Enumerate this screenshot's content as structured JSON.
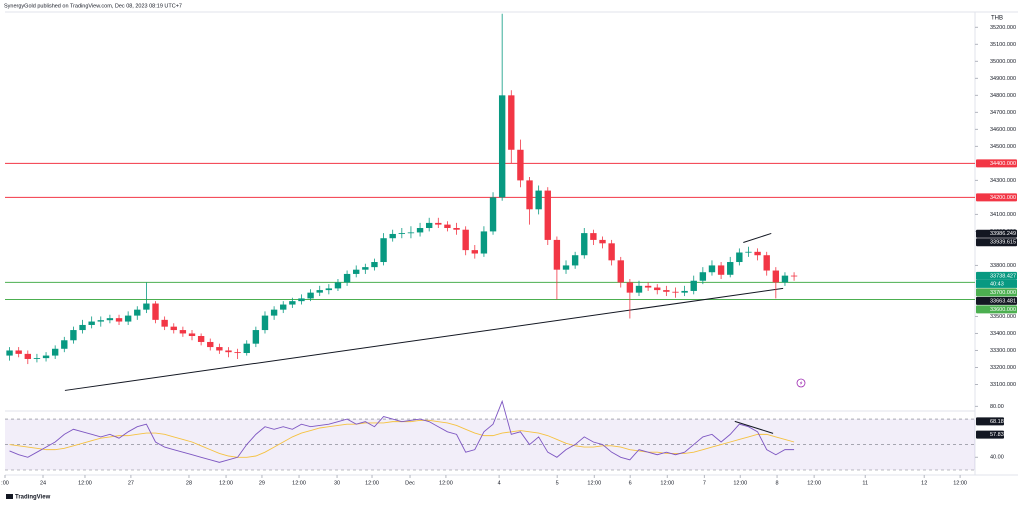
{
  "chart_data": {
    "type": "candlestick",
    "header": "SynergyGold published on TradingView.com, Dec 08, 2023 08:19 UTC+7",
    "currency": "THB",
    "brand": "TradingView",
    "up_color": "#089981",
    "down_color": "#f23645",
    "x": [
      1.5,
      4.5,
      7.5,
      10.5,
      13.5,
      16.5,
      19.5,
      22.5,
      25.5,
      28.5,
      31.5,
      34.5,
      37.5,
      40.5,
      43.5,
      46.5,
      49.5,
      52.5,
      55.5,
      58.5,
      61.5,
      64.5,
      67.5,
      70.5,
      73.5,
      76.5,
      79.5,
      82.5,
      85.5,
      88.5,
      91.5,
      94.5,
      97.5,
      100.5,
      103.5,
      106.5,
      109.5,
      112.5,
      115.5,
      118.5,
      121.5,
      124.5,
      127.5,
      130.5,
      133.5,
      136.5,
      139.5,
      142.5,
      145.5,
      148.5,
      151.5,
      154.5,
      157.5,
      160.5,
      163.5,
      166.5,
      169.5,
      172.5,
      175.5,
      178.5,
      181.5,
      184.5,
      187.5,
      190.5,
      193.5,
      196.5,
      199.5,
      202.5,
      205.5,
      208.5,
      211.5,
      214.5,
      217.5,
      220.5,
      223.5,
      226.5,
      229.5,
      232.5,
      235.5,
      238.5,
      241.5,
      244.5,
      247.5,
      250.5,
      253.5,
      256.5,
      259.5
    ],
    "candles": [
      [
        33270,
        33320,
        33240,
        33300
      ],
      [
        33300,
        33320,
        33260,
        33280
      ],
      [
        33280,
        33300,
        33220,
        33250
      ],
      [
        33250,
        33280,
        33230,
        33255
      ],
      [
        33255,
        33290,
        33235,
        33270
      ],
      [
        33270,
        33330,
        33250,
        33310
      ],
      [
        33310,
        33380,
        33290,
        33360
      ],
      [
        33360,
        33440,
        33340,
        33420
      ],
      [
        33420,
        33480,
        33400,
        33450
      ],
      [
        33450,
        33500,
        33430,
        33470
      ],
      [
        33470,
        33500,
        33440,
        33478
      ],
      [
        33478,
        33510,
        33460,
        33490
      ],
      [
        33490,
        33510,
        33450,
        33470
      ],
      [
        33470,
        33530,
        33450,
        33505
      ],
      [
        33505,
        33560,
        33480,
        33540
      ],
      [
        33540,
        33700,
        33520,
        33576
      ],
      [
        33576,
        33590,
        33460,
        33480
      ],
      [
        33480,
        33500,
        33420,
        33440
      ],
      [
        33440,
        33460,
        33400,
        33420
      ],
      [
        33420,
        33440,
        33380,
        33400
      ],
      [
        33400,
        33420,
        33360,
        33385
      ],
      [
        33385,
        33400,
        33330,
        33350
      ],
      [
        33350,
        33370,
        33300,
        33320
      ],
      [
        33320,
        33340,
        33280,
        33300
      ],
      [
        33300,
        33320,
        33260,
        33290
      ],
      [
        33290,
        33310,
        33250,
        33285
      ],
      [
        33285,
        33360,
        33270,
        33340
      ],
      [
        33340,
        33440,
        33320,
        33420
      ],
      [
        33420,
        33530,
        33400,
        33505
      ],
      [
        33505,
        33560,
        33480,
        33540
      ],
      [
        33540,
        33590,
        33520,
        33570
      ],
      [
        33570,
        33610,
        33550,
        33590
      ],
      [
        33590,
        33630,
        33570,
        33606
      ],
      [
        33606,
        33660,
        33590,
        33640
      ],
      [
        33640,
        33680,
        33620,
        33655
      ],
      [
        33655,
        33690,
        33630,
        33665
      ],
      [
        33665,
        33720,
        33650,
        33700
      ],
      [
        33700,
        33770,
        33680,
        33750
      ],
      [
        33750,
        33800,
        33730,
        33775
      ],
      [
        33775,
        33810,
        33750,
        33790
      ],
      [
        33790,
        33840,
        33770,
        33820
      ],
      [
        33820,
        33990,
        33800,
        33960
      ],
      [
        33960,
        34010,
        33940,
        33985
      ],
      [
        33985,
        34020,
        33960,
        33990
      ],
      [
        33990,
        34030,
        33960,
        33994
      ],
      [
        33994,
        34050,
        33970,
        34020
      ],
      [
        34020,
        34080,
        34000,
        34050
      ],
      [
        34050,
        34080,
        34020,
        34040
      ],
      [
        34040,
        34060,
        34000,
        34020
      ],
      [
        34020,
        34050,
        33980,
        34010
      ],
      [
        34010,
        34030,
        33860,
        33890
      ],
      [
        33890,
        33920,
        33840,
        33870
      ],
      [
        33870,
        34030,
        33850,
        34000
      ],
      [
        34000,
        34230,
        33980,
        34200
      ],
      [
        34200,
        35280,
        34180,
        34800
      ],
      [
        34800,
        34830,
        34400,
        34480
      ],
      [
        34480,
        34540,
        34260,
        34300
      ],
      [
        34300,
        34320,
        34040,
        34130
      ],
      [
        34130,
        34270,
        34100,
        34240
      ],
      [
        34240,
        34260,
        33920,
        33950
      ],
      [
        33950,
        33970,
        33600,
        33775
      ],
      [
        33775,
        33830,
        33750,
        33800
      ],
      [
        33800,
        33880,
        33780,
        33860
      ],
      [
        33860,
        34020,
        33840,
        33990
      ],
      [
        33990,
        34010,
        33920,
        33950
      ],
      [
        33950,
        33970,
        33900,
        33930
      ],
      [
        33930,
        33950,
        33800,
        33830
      ],
      [
        33830,
        33850,
        33670,
        33700
      ],
      [
        33700,
        33720,
        33488,
        33640
      ],
      [
        33640,
        33710,
        33620,
        33680
      ],
      [
        33680,
        33700,
        33650,
        33670
      ],
      [
        33670,
        33690,
        33630,
        33655
      ],
      [
        33655,
        33680,
        33620,
        33645
      ],
      [
        33645,
        33670,
        33610,
        33640
      ],
      [
        33640,
        33680,
        33620,
        33650
      ],
      [
        33650,
        33740,
        33630,
        33710
      ],
      [
        33710,
        33790,
        33690,
        33760
      ],
      [
        33760,
        33830,
        33740,
        33800
      ],
      [
        33800,
        33820,
        33720,
        33745
      ],
      [
        33745,
        33850,
        33730,
        33820
      ],
      [
        33820,
        33900,
        33800,
        33876
      ],
      [
        33876,
        33910,
        33850,
        33880
      ],
      [
        33880,
        33900,
        33830,
        33860
      ],
      [
        33860,
        33880,
        33740,
        33770
      ],
      [
        33770,
        33790,
        33606,
        33700
      ],
      [
        33700,
        33760,
        33680,
        33740
      ],
      [
        33740,
        33760,
        33710,
        33738
      ]
    ],
    "xlim": [
      0,
      319
    ],
    "xticks": [
      {
        "value": 0,
        "label": ":00"
      },
      {
        "value": 12.5,
        "label": "24"
      },
      {
        "value": 26.3,
        "label": "12:00"
      },
      {
        "value": 41.4,
        "label": "27"
      },
      {
        "value": 60.5,
        "label": "28"
      },
      {
        "value": 72.7,
        "label": "12:00"
      },
      {
        "value": 84.5,
        "label": "29"
      },
      {
        "value": 96.7,
        "label": "12:00"
      },
      {
        "value": 109.2,
        "label": "30"
      },
      {
        "value": 120.7,
        "label": "12:00"
      },
      {
        "value": 133.2,
        "label": "Dec"
      },
      {
        "value": 145,
        "label": "12:00"
      },
      {
        "value": 162.5,
        "label": "4"
      },
      {
        "value": 181.6,
        "label": "5"
      },
      {
        "value": 193.8,
        "label": "12:00"
      },
      {
        "value": 205.6,
        "label": "6"
      },
      {
        "value": 217.8,
        "label": "12:00"
      },
      {
        "value": 230,
        "label": "7"
      },
      {
        "value": 241.8,
        "label": "12:00"
      },
      {
        "value": 253.9,
        "label": "8"
      },
      {
        "value": 266.1,
        "label": "12:00"
      },
      {
        "value": 282.9,
        "label": "11"
      },
      {
        "value": 302.3,
        "label": "12"
      },
      {
        "value": 314.1,
        "label": "12:00"
      }
    ],
    "ylim": [
      32950,
      35290
    ],
    "yticks": [
      {
        "value": 35200,
        "label": "35200.000"
      },
      {
        "value": 35100,
        "label": "35100.000"
      },
      {
        "value": 35000,
        "label": "35000.000"
      },
      {
        "value": 34900,
        "label": "34900.000"
      },
      {
        "value": 34800,
        "label": "34800.000"
      },
      {
        "value": 34700,
        "label": "34700.000"
      },
      {
        "value": 34600,
        "label": "34600.000"
      },
      {
        "value": 34500,
        "label": "34500.000"
      },
      {
        "value": 34300,
        "label": "34300.000"
      },
      {
        "value": 34100,
        "label": "34100.000"
      },
      {
        "value": 34000,
        "label": "34000.000"
      },
      {
        "value": 33800,
        "label": "33800.000"
      },
      {
        "value": 33500,
        "label": "33500.000"
      },
      {
        "value": 33400,
        "label": "33400.000"
      },
      {
        "value": 33300,
        "label": "33300.000"
      },
      {
        "value": 33200,
        "label": "33200.000"
      },
      {
        "value": 33100,
        "label": "33100.000"
      }
    ],
    "hlines": [
      {
        "value": 34400,
        "color": "#f23645"
      },
      {
        "value": 34200,
        "color": "#f23645"
      },
      {
        "value": 33700,
        "color": "#4caf50"
      },
      {
        "value": 33600,
        "color": "#4caf50"
      }
    ],
    "tags": [
      {
        "value": 34400,
        "label": "34400.000",
        "color": "#f23645"
      },
      {
        "value": 34200,
        "label": "34200.000",
        "color": "#f23645"
      },
      {
        "value": 33986.249,
        "label": "33986.249",
        "color": "#131722"
      },
      {
        "value": 33939.615,
        "label": "33939.615",
        "color": "#131722"
      },
      {
        "value": 33738.427,
        "label": "33738.427",
        "color": "#089981"
      },
      {
        "value": 33700,
        "label": "33700.000",
        "color": "#4caf50"
      },
      {
        "value": 33663.481,
        "label": "33663.481",
        "color": "#131722"
      },
      {
        "value": 33600,
        "label": "33600.000",
        "color": "#4caf50"
      }
    ],
    "countdown": "40:43",
    "trendlines": [
      {
        "x": [
          19.7,
          255.9
        ],
        "y": [
          33065,
          33665
        ],
        "color": "#131722"
      },
      {
        "x": [
          242.8,
          252
        ],
        "y": [
          33935,
          33988
        ],
        "color": "#131722"
      }
    ],
    "rsi": {
      "color": "#7e57c2",
      "ma_color": "#f5c242",
      "ylim": [
        30,
        85
      ],
      "yticks": [
        {
          "value": 80,
          "label": "80.00"
        },
        {
          "value": 40,
          "label": "40.00"
        }
      ],
      "bands": [
        70,
        50,
        30
      ],
      "markers": [
        {
          "value": 68.18,
          "color": "#131722"
        },
        {
          "value": 57.83,
          "color": "#131722"
        }
      ],
      "values": [
        45,
        42,
        40,
        44,
        48,
        52,
        58,
        62,
        60,
        58,
        56,
        58,
        55,
        60,
        64,
        66,
        52,
        48,
        46,
        44,
        42,
        40,
        38,
        36,
        38,
        40,
        50,
        58,
        64,
        62,
        64,
        62,
        66,
        64,
        65,
        66,
        68,
        70,
        66,
        68,
        64,
        72,
        70,
        68,
        69,
        70,
        68,
        64,
        60,
        58,
        44,
        46,
        60,
        66,
        84,
        58,
        60,
        50,
        56,
        44,
        40,
        46,
        50,
        56,
        52,
        50,
        44,
        40,
        38,
        46,
        44,
        42,
        44,
        42,
        44,
        50,
        56,
        58,
        52,
        58,
        66,
        64,
        60,
        46,
        42,
        46,
        46
      ],
      "ma": [
        50,
        49,
        48,
        47,
        46,
        46,
        47,
        49,
        51,
        53,
        55,
        56,
        57,
        57,
        58,
        59,
        59,
        58,
        56,
        54,
        52,
        49,
        46,
        43,
        41,
        40,
        40,
        41,
        44,
        48,
        52,
        56,
        59,
        61,
        63,
        64,
        65,
        66,
        66,
        67,
        67,
        67,
        68,
        68,
        68,
        69,
        69,
        68,
        67,
        65,
        62,
        59,
        57,
        57,
        59,
        60,
        61,
        60,
        59,
        57,
        54,
        51,
        49,
        48,
        48,
        49,
        49,
        48,
        46,
        45,
        44,
        44,
        43,
        43,
        43,
        44,
        46,
        48,
        50,
        52,
        54,
        56,
        58,
        58,
        56,
        54,
        52
      ],
      "trendline": {
        "x": [
          240,
          252.6
        ],
        "y": [
          68.2,
          58.8
        ],
        "color": "#131722"
      }
    }
  }
}
